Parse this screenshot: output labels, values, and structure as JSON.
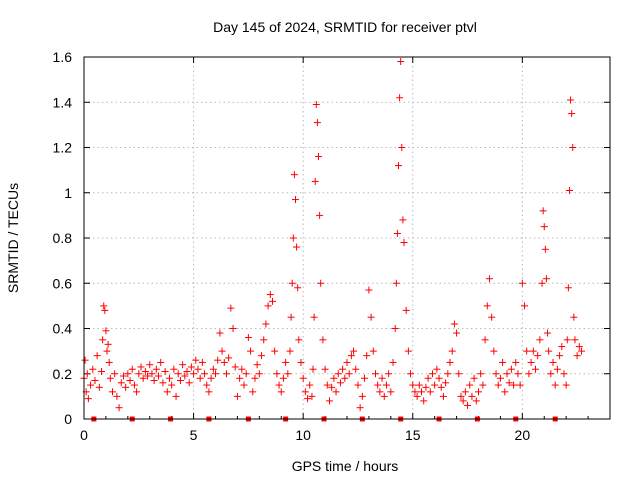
{
  "chart_data": {
    "type": "scatter",
    "title": "Day 145 of 2024, SRMTID for receiver ptvl",
    "xlabel": "GPS time / hours",
    "ylabel": "SRMTID / TECUs",
    "xlim": [
      0,
      24
    ],
    "ylim": [
      0,
      1.6
    ],
    "x_ticks": [
      0,
      5,
      10,
      15,
      20
    ],
    "y_ticks": [
      0,
      0.2,
      0.4,
      0.6,
      0.8,
      1,
      1.2,
      1.4,
      1.6
    ],
    "y_tick_labels": [
      "0",
      "0.2",
      "0.4",
      "0.6",
      "0.8",
      "1",
      "1.2",
      "1.4",
      "1.6"
    ],
    "grid": true,
    "marker": "plus",
    "color": "#ff0000",
    "baseline_markers_x": [
      0.45,
      2.2,
      3.95,
      5.7,
      7.5,
      9.2,
      10.95,
      12.7,
      14.45,
      16.2,
      17.95,
      19.7,
      21.5
    ],
    "series": [
      {
        "name": "SRMTID",
        "x": [
          0.0,
          0.05,
          0.1,
          0.15,
          0.2,
          0.3,
          0.4,
          0.5,
          0.6,
          0.7,
          0.8,
          0.85,
          0.9,
          0.95,
          1.0,
          1.05,
          1.1,
          1.15,
          1.2,
          1.3,
          1.4,
          1.5,
          1.6,
          1.7,
          1.8,
          1.9,
          2.0,
          2.1,
          2.2,
          2.3,
          2.4,
          2.5,
          2.6,
          2.7,
          2.8,
          2.9,
          3.0,
          3.1,
          3.2,
          3.3,
          3.4,
          3.5,
          3.6,
          3.7,
          3.8,
          3.9,
          4.0,
          4.1,
          4.2,
          4.3,
          4.4,
          4.5,
          4.6,
          4.7,
          4.8,
          4.9,
          5.0,
          5.1,
          5.2,
          5.3,
          5.4,
          5.5,
          5.6,
          5.7,
          5.8,
          5.9,
          6.0,
          6.1,
          6.2,
          6.3,
          6.4,
          6.5,
          6.6,
          6.7,
          6.8,
          6.9,
          7.0,
          7.1,
          7.2,
          7.3,
          7.4,
          7.5,
          7.6,
          7.7,
          7.8,
          7.9,
          8.0,
          8.1,
          8.2,
          8.3,
          8.4,
          8.5,
          8.6,
          8.7,
          8.8,
          8.9,
          9.0,
          9.1,
          9.2,
          9.3,
          9.4,
          9.45,
          9.5,
          9.55,
          9.6,
          9.65,
          9.7,
          9.75,
          9.8,
          9.9,
          10.0,
          10.1,
          10.2,
          10.3,
          10.4,
          10.45,
          10.5,
          10.55,
          10.6,
          10.65,
          10.7,
          10.75,
          10.8,
          10.9,
          11.0,
          11.1,
          11.2,
          11.3,
          11.4,
          11.5,
          11.6,
          11.7,
          11.8,
          11.9,
          12.0,
          12.1,
          12.2,
          12.3,
          12.4,
          12.5,
          12.6,
          12.7,
          12.8,
          12.9,
          13.0,
          13.1,
          13.2,
          13.3,
          13.4,
          13.5,
          13.6,
          13.7,
          13.8,
          13.9,
          14.0,
          14.1,
          14.2,
          14.25,
          14.3,
          14.35,
          14.4,
          14.45,
          14.5,
          14.55,
          14.6,
          14.7,
          14.8,
          14.9,
          15.0,
          15.1,
          15.2,
          15.3,
          15.4,
          15.5,
          15.6,
          15.7,
          15.8,
          15.9,
          16.0,
          16.1,
          16.2,
          16.3,
          16.4,
          16.5,
          16.6,
          16.7,
          16.8,
          16.9,
          17.0,
          17.1,
          17.2,
          17.3,
          17.4,
          17.5,
          17.6,
          17.7,
          17.8,
          17.9,
          18.0,
          18.1,
          18.2,
          18.3,
          18.4,
          18.5,
          18.6,
          18.7,
          18.8,
          18.9,
          19.0,
          19.1,
          19.2,
          19.3,
          19.4,
          19.5,
          19.6,
          19.7,
          19.8,
          19.9,
          20.0,
          20.1,
          20.2,
          20.3,
          20.4,
          20.5,
          20.6,
          20.7,
          20.8,
          20.9,
          20.95,
          21.0,
          21.05,
          21.1,
          21.15,
          21.2,
          21.3,
          21.4,
          21.5,
          21.6,
          21.7,
          21.8,
          21.9,
          22.0,
          22.05,
          22.1,
          22.15,
          22.2,
          22.25,
          22.3,
          22.35,
          22.4,
          22.5,
          22.6,
          22.7
        ],
        "y": [
          0.18,
          0.26,
          0.12,
          0.2,
          0.09,
          0.15,
          0.22,
          0.17,
          0.28,
          0.14,
          0.21,
          0.35,
          0.5,
          0.48,
          0.39,
          0.3,
          0.33,
          0.25,
          0.18,
          0.12,
          0.2,
          0.1,
          0.05,
          0.16,
          0.19,
          0.14,
          0.2,
          0.17,
          0.22,
          0.15,
          0.12,
          0.2,
          0.23,
          0.18,
          0.21,
          0.19,
          0.24,
          0.2,
          0.17,
          0.22,
          0.19,
          0.25,
          0.16,
          0.21,
          0.12,
          0.18,
          0.15,
          0.22,
          0.1,
          0.2,
          0.17,
          0.24,
          0.19,
          0.21,
          0.16,
          0.23,
          0.2,
          0.26,
          0.22,
          0.18,
          0.25,
          0.2,
          0.15,
          0.12,
          0.18,
          0.22,
          0.2,
          0.26,
          0.38,
          0.3,
          0.25,
          0.2,
          0.27,
          0.49,
          0.4,
          0.23,
          0.1,
          0.18,
          0.22,
          0.15,
          0.2,
          0.36,
          0.3,
          0.12,
          0.18,
          0.24,
          0.2,
          0.28,
          0.35,
          0.42,
          0.5,
          0.55,
          0.52,
          0.3,
          0.2,
          0.15,
          0.12,
          0.18,
          0.25,
          0.2,
          0.3,
          0.45,
          0.6,
          0.8,
          1.08,
          0.97,
          0.76,
          0.58,
          0.35,
          0.25,
          0.18,
          0.12,
          0.09,
          0.15,
          0.1,
          0.22,
          0.45,
          1.05,
          1.39,
          1.31,
          1.16,
          0.9,
          0.6,
          0.35,
          0.22,
          0.15,
          0.08,
          0.14,
          0.18,
          0.12,
          0.2,
          0.16,
          0.22,
          0.18,
          0.25,
          0.2,
          0.28,
          0.3,
          0.22,
          0.15,
          0.05,
          0.1,
          0.18,
          0.28,
          0.57,
          0.45,
          0.3,
          0.2,
          0.15,
          0.12,
          0.18,
          0.1,
          0.15,
          0.2,
          0.12,
          0.25,
          0.4,
          0.6,
          0.82,
          1.12,
          1.42,
          1.58,
          1.2,
          0.88,
          0.78,
          0.48,
          0.3,
          0.2,
          0.15,
          0.12,
          0.1,
          0.15,
          0.12,
          0.08,
          0.14,
          0.18,
          0.12,
          0.2,
          0.15,
          0.22,
          0.18,
          0.14,
          0.1,
          0.16,
          0.2,
          0.25,
          0.3,
          0.42,
          0.38,
          0.2,
          0.1,
          0.08,
          0.12,
          0.06,
          0.15,
          0.1,
          0.18,
          0.08,
          0.12,
          0.2,
          0.15,
          0.35,
          0.5,
          0.62,
          0.45,
          0.3,
          0.2,
          0.15,
          0.18,
          0.25,
          0.12,
          0.2,
          0.16,
          0.22,
          0.15,
          0.25,
          0.2,
          0.15,
          0.6,
          0.5,
          0.3,
          0.2,
          0.25,
          0.3,
          0.22,
          0.28,
          0.35,
          0.6,
          0.92,
          0.85,
          0.75,
          0.62,
          0.38,
          0.3,
          0.2,
          0.25,
          0.15,
          0.22,
          0.28,
          0.32,
          0.2,
          0.15,
          0.35,
          0.58,
          1.01,
          1.41,
          1.35,
          1.2,
          0.45,
          0.35,
          0.28,
          0.32,
          0.3
        ]
      }
    ]
  }
}
